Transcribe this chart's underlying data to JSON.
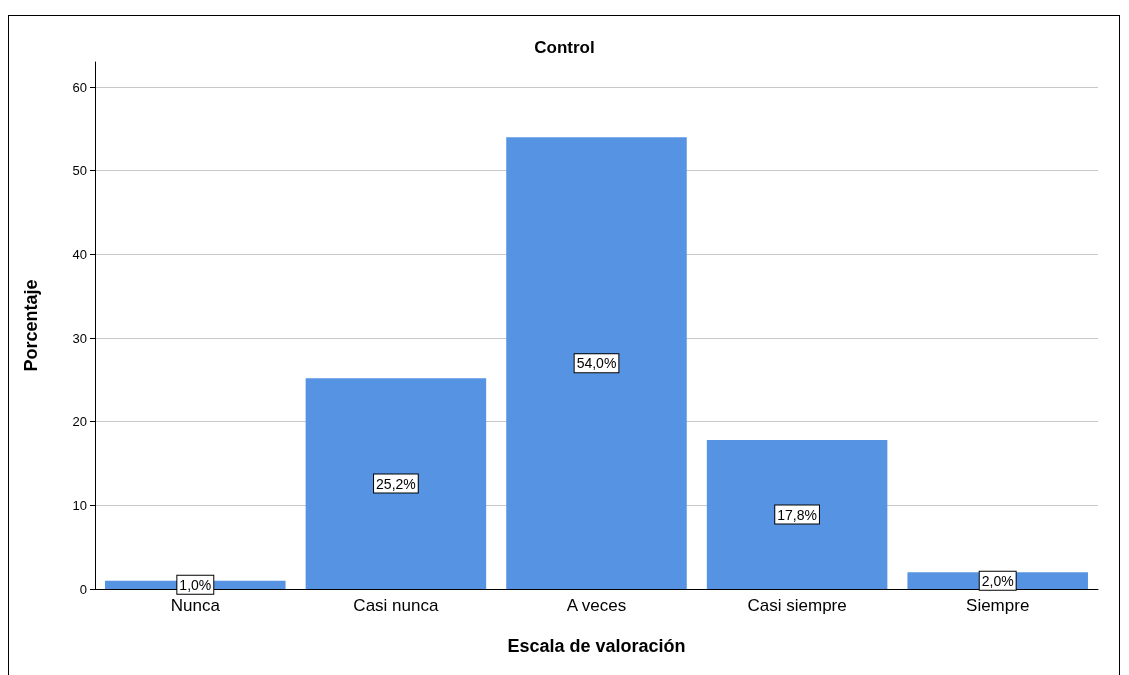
{
  "chart_data": {
    "type": "bar",
    "title": "Control",
    "xlabel": "Escala de valoración",
    "ylabel": "Porcentaje",
    "categories": [
      "Nunca",
      "Casi nunca",
      "A veces",
      "Casi siempre",
      "Siempre"
    ],
    "values": [
      1.0,
      25.2,
      54.0,
      17.8,
      2.0
    ],
    "value_labels": [
      "1,0%",
      "25,2%",
      "54,0%",
      "17,8%",
      "2,0%"
    ],
    "color": "#5694e3",
    "ylim": [
      0,
      63
    ],
    "yticks": [
      0,
      10,
      20,
      30,
      40,
      50,
      60
    ],
    "grid": "y"
  }
}
